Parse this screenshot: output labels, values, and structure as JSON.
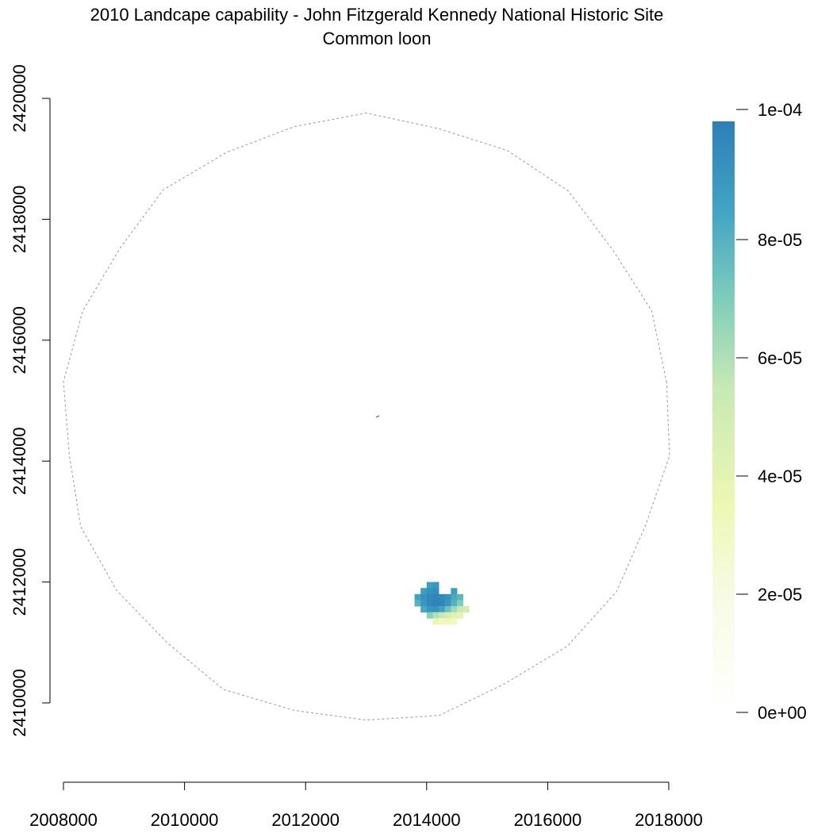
{
  "chart_data": {
    "type": "heatmap",
    "title": "2010 Landcape capability - John Fitzgerald Kennedy National Historic Site",
    "subtitle": "Common loon",
    "xlabel": "",
    "ylabel": "",
    "xlim": [
      2008000,
      2018000
    ],
    "ylim": [
      2410000,
      2420000
    ],
    "x_ticks": [
      2008000,
      2010000,
      2012000,
      2014000,
      2016000,
      2018000
    ],
    "x_tick_labels": [
      "2008000",
      "2010000",
      "2012000",
      "2014000",
      "2016000",
      "2018000"
    ],
    "y_ticks": [
      2410000,
      2412000,
      2414000,
      2416000,
      2418000,
      2420000
    ],
    "y_tick_labels": [
      "2410000",
      "2412000",
      "2414000",
      "2416000",
      "2418000",
      "2420000"
    ],
    "grid": false,
    "legend": {
      "type": "colorbar",
      "placement": "right",
      "range": [
        0,
        0.0001
      ],
      "ticks": [
        0,
        2e-05,
        4e-05,
        6e-05,
        8e-05,
        0.0001
      ],
      "tick_labels": [
        "0e+00",
        "2e-05",
        "4e-05",
        "6e-05",
        "8e-05",
        "1e-04"
      ],
      "colors": [
        "#ffffff",
        "#f1f9c8",
        "#e8f5a6",
        "#a9ddb5",
        "#7fcdbb",
        "#41a4c4",
        "#2c7fb8"
      ]
    },
    "study_area_outline": {
      "style": "dashed",
      "color": "#999999",
      "center": [
        2013000,
        2414700
      ],
      "radius": 5000
    },
    "raster": {
      "cell_size": 100,
      "cells": [
        [
          2014000,
          2411900,
          8.7e-05
        ],
        [
          2014100,
          2411900,
          9e-05
        ],
        [
          2013900,
          2411800,
          8.8e-05
        ],
        [
          2014000,
          2411800,
          9.2e-05
        ],
        [
          2014100,
          2411800,
          9.4e-05
        ],
        [
          2014400,
          2411800,
          8.8e-05
        ],
        [
          2013800,
          2411700,
          8.5e-05
        ],
        [
          2013900,
          2411700,
          9.2e-05
        ],
        [
          2014000,
          2411700,
          9.6e-05
        ],
        [
          2014100,
          2411700,
          9.7e-05
        ],
        [
          2014200,
          2411700,
          9.5e-05
        ],
        [
          2014300,
          2411700,
          9.2e-05
        ],
        [
          2014400,
          2411700,
          8.3e-05
        ],
        [
          2014500,
          2411700,
          7.8e-05
        ],
        [
          2013800,
          2411600,
          8e-05
        ],
        [
          2013900,
          2411600,
          9e-05
        ],
        [
          2014000,
          2411600,
          9.6e-05
        ],
        [
          2014100,
          2411600,
          9.8e-05
        ],
        [
          2014200,
          2411600,
          9.7e-05
        ],
        [
          2014300,
          2411600,
          9e-05
        ],
        [
          2014400,
          2411600,
          8e-05
        ],
        [
          2014500,
          2411600,
          7e-05
        ],
        [
          2013900,
          2411500,
          8.3e-05
        ],
        [
          2014000,
          2411500,
          9e-05
        ],
        [
          2014100,
          2411500,
          9.2e-05
        ],
        [
          2014200,
          2411500,
          8.5e-05
        ],
        [
          2014300,
          2411500,
          7.4e-05
        ],
        [
          2014400,
          2411500,
          6.3e-05
        ],
        [
          2014500,
          2411500,
          5.5e-05
        ],
        [
          2014600,
          2411500,
          5e-05
        ],
        [
          2014000,
          2411400,
          6.8e-05
        ],
        [
          2014100,
          2411400,
          6e-05
        ],
        [
          2014200,
          2411400,
          5.5e-05
        ],
        [
          2014300,
          2411400,
          4.8e-05
        ],
        [
          2014400,
          2411400,
          4.2e-05
        ],
        [
          2014500,
          2411400,
          4e-05
        ],
        [
          2014100,
          2411300,
          3.6e-05
        ],
        [
          2014200,
          2411300,
          3.2e-05
        ],
        [
          2014300,
          2411300,
          3.4e-05
        ],
        [
          2014400,
          2411300,
          3.1e-05
        ]
      ]
    }
  }
}
